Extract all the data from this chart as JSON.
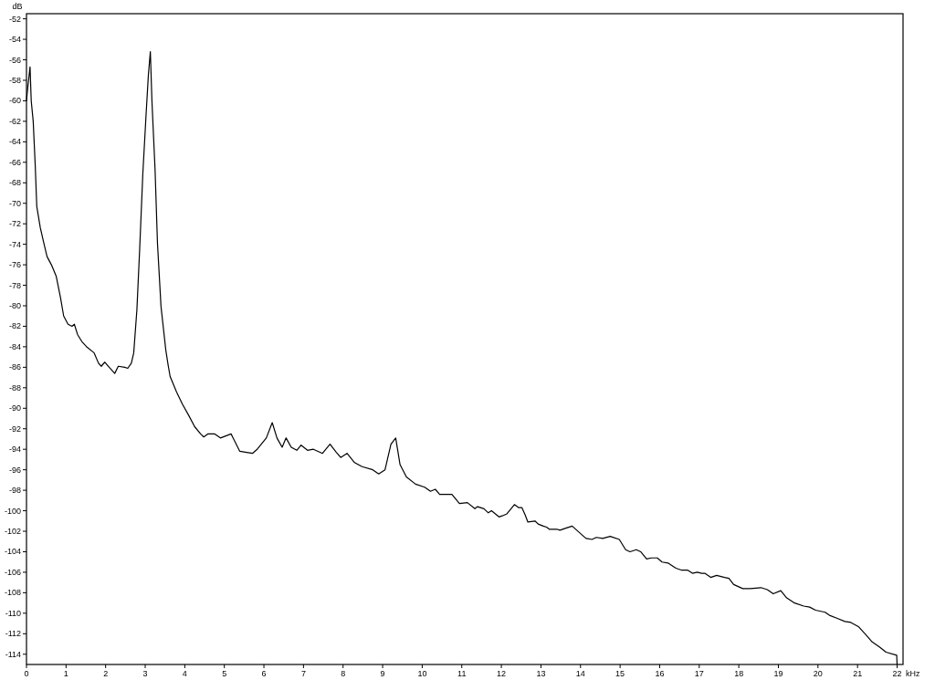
{
  "chart_data": {
    "type": "line",
    "xlabel": "kHz",
    "ylabel": "dB",
    "xlim": [
      0,
      22.15
    ],
    "ylim": [
      -115,
      -51.5
    ],
    "xticks": [
      0,
      1,
      2,
      3,
      4,
      5,
      6,
      7,
      8,
      9,
      10,
      11,
      12,
      13,
      14,
      15,
      16,
      17,
      18,
      19,
      20,
      21,
      22
    ],
    "yticks": [
      -52,
      -54,
      -56,
      -58,
      -60,
      -62,
      -64,
      -66,
      -68,
      -70,
      -72,
      -74,
      -76,
      -78,
      -80,
      -82,
      -84,
      -86,
      -88,
      -90,
      -92,
      -94,
      -96,
      -98,
      -100,
      -102,
      -104,
      -106,
      -108,
      -110,
      -112,
      -114
    ],
    "grid": false,
    "series": [
      {
        "color": "#000000",
        "x": [
          0,
          0.03,
          0.09,
          0.12,
          0.17,
          0.22,
          0.26,
          0.35,
          0.44,
          0.52,
          0.63,
          0.75,
          0.86,
          0.94,
          1.05,
          1.15,
          1.21,
          1.29,
          1.4,
          1.52,
          1.71,
          1.82,
          1.89,
          1.98,
          2.09,
          2.23,
          2.32,
          2.48,
          2.56,
          2.65,
          2.71,
          2.79,
          2.86,
          2.94,
          3.02,
          3.08,
          3.13,
          3.17,
          3.25,
          3.31,
          3.4,
          3.52,
          3.58,
          3.63,
          3.79,
          3.94,
          4.1,
          4.25,
          4.4,
          4.48,
          4.59,
          4.75,
          4.9,
          5.17,
          5.39,
          5.56,
          5.71,
          5.83,
          6.06,
          6.21,
          6.33,
          6.46,
          6.56,
          6.69,
          6.83,
          6.94,
          7.1,
          7.25,
          7.48,
          7.67,
          7.83,
          7.94,
          8.1,
          8.29,
          8.48,
          8.75,
          8.9,
          9.06,
          9.21,
          9.33,
          9.44,
          9.6,
          9.83,
          10.06,
          10.21,
          10.33,
          10.44,
          10.75,
          10.94,
          11.14,
          11.33,
          11.4,
          11.56,
          11.67,
          11.75,
          11.94,
          12.02,
          12.14,
          12.33,
          12.44,
          12.52,
          12.6,
          12.67,
          12.85,
          12.93,
          13.06,
          13.14,
          13.21,
          13.4,
          13.48,
          13.63,
          13.79,
          14.02,
          14.14,
          14.29,
          14.4,
          14.56,
          14.75,
          14.98,
          15.14,
          15.25,
          15.41,
          15.52,
          15.67,
          15.79,
          15.94,
          16.06,
          16.21,
          16.41,
          16.56,
          16.71,
          16.83,
          16.95,
          17.06,
          17.14,
          17.29,
          17.44,
          17.64,
          17.75,
          17.87,
          18.1,
          18.29,
          18.56,
          18.72,
          18.87,
          19.06,
          19.21,
          19.41,
          19.64,
          19.79,
          19.94,
          20.18,
          20.29,
          20.49,
          20.68,
          20.83,
          21.02,
          21.21,
          21.37,
          21.56,
          21.72,
          21.99,
          22
        ],
        "values": [
          -60,
          -58.8,
          -56.7,
          -60,
          -62,
          -66.2,
          -70.3,
          -72.4,
          -73.9,
          -75.2,
          -76,
          -77.1,
          -79.2,
          -81,
          -81.8,
          -82,
          -81.8,
          -82.8,
          -83.5,
          -84,
          -84.6,
          -85.6,
          -85.9,
          -85.5,
          -86,
          -86.6,
          -85.9,
          -86,
          -86.1,
          -85.6,
          -84.6,
          -80.4,
          -74.5,
          -67.1,
          -61.5,
          -57.5,
          -55.2,
          -60,
          -66.8,
          -73.9,
          -80.1,
          -84.3,
          -85.8,
          -86.9,
          -88.4,
          -89.6,
          -90.7,
          -91.8,
          -92.5,
          -92.8,
          -92.5,
          -92.5,
          -92.9,
          -92.5,
          -94.2,
          -94.3,
          -94.4,
          -94,
          -92.9,
          -91.4,
          -92.9,
          -93.8,
          -92.9,
          -93.8,
          -94.1,
          -93.6,
          -94.1,
          -94,
          -94.4,
          -93.5,
          -94.3,
          -94.8,
          -94.4,
          -95.3,
          -95.7,
          -96,
          -96.4,
          -96,
          -93.5,
          -92.9,
          -95.5,
          -96.7,
          -97.4,
          -97.7,
          -98.1,
          -97.9,
          -98.4,
          -98.4,
          -99.3,
          -99.2,
          -99.8,
          -99.6,
          -99.8,
          -100.2,
          -100,
          -100.6,
          -100.5,
          -100.3,
          -99.4,
          -99.7,
          -99.7,
          -100.4,
          -101.1,
          -101,
          -101.3,
          -101.5,
          -101.6,
          -101.8,
          -101.8,
          -101.9,
          -101.7,
          -101.5,
          -102.3,
          -102.7,
          -102.8,
          -102.6,
          -102.7,
          -102.5,
          -102.8,
          -103.8,
          -104,
          -103.8,
          -104,
          -104.7,
          -104.6,
          -104.6,
          -105,
          -105.1,
          -105.6,
          -105.8,
          -105.8,
          -106.1,
          -106,
          -106.1,
          -106.1,
          -106.5,
          -106.3,
          -106.5,
          -106.6,
          -107.2,
          -107.6,
          -107.6,
          -107.5,
          -107.7,
          -108.1,
          -107.8,
          -108.5,
          -109,
          -109.3,
          -109.4,
          -109.7,
          -109.9,
          -110.2,
          -110.5,
          -110.8,
          -110.9,
          -111.3,
          -112.1,
          -112.8,
          -113.3,
          -113.8,
          -114.1,
          -115
        ]
      }
    ]
  }
}
